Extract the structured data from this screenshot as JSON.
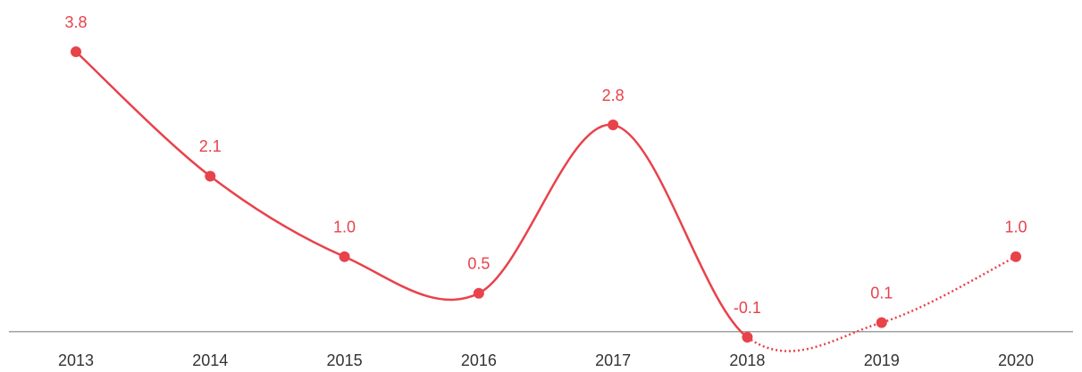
{
  "chart_data": {
    "type": "line",
    "categories": [
      "2013",
      "2014",
      "2015",
      "2016",
      "2017",
      "2018",
      "2019",
      "2020"
    ],
    "values": [
      3.8,
      2.1,
      1.0,
      0.5,
      2.8,
      -0.1,
      0.1,
      1.0
    ],
    "value_labels": [
      "3.8",
      "2.1",
      "1.0",
      "0.5",
      "2.8",
      "-0.1",
      "0.1",
      "1.0"
    ],
    "color": "#e8424b",
    "dotted_from": "2018"
  }
}
